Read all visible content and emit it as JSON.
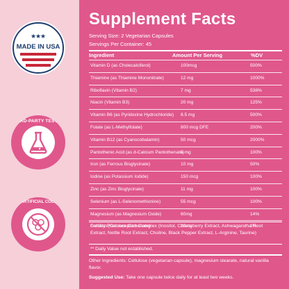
{
  "colors": {
    "background": "#f6cfd9",
    "panel": "#e0578c",
    "badge_navy": "#1f3d6e",
    "badge_red": "#c8283a",
    "badge_pink": "#e0578c"
  },
  "badges": {
    "usa": {
      "text": "MADE IN USA",
      "icon": "star-stripes-icon"
    },
    "third_party": {
      "text": "THIRD-PARTY TESTED",
      "icon": "flask-icon"
    },
    "no_artificial": {
      "text": "NO ARTIFICIAL COLORS",
      "icon": "no-colors-icon"
    }
  },
  "facts": {
    "title": "Supplement Facts",
    "serving_size": "Serving Size: 2 Vegetarian Capsules",
    "servings_per_container": "Servings Per Container: 45",
    "col_ingredient": "Ingredient",
    "col_amount": "Amount Per Serving",
    "col_dv": "%DV",
    "rows": [
      {
        "name": "Vitamin D (as Cholecalciferol)",
        "amount": "100mcg",
        "dv": "500%"
      },
      {
        "name": "Thiamine (as Thiamine Mononitrate)",
        "amount": "12 mg",
        "dv": "1000%"
      },
      {
        "name": "Riboflavin (Vitamin B2)",
        "amount": "7 mg",
        "dv": "538%"
      },
      {
        "name": "Niacin (Vitamin B3)",
        "amount": "20 mg",
        "dv": "125%"
      },
      {
        "name": "Vitamin B6 (as Pyridoxine Hydrochloride)",
        "amount": "8.5 mg",
        "dv": "500%"
      },
      {
        "name": "Folate (as L-Methylfolate)",
        "amount": "800 mcg DFE",
        "dv": "200%"
      },
      {
        "name": "Vitamin B12 (as Cyanocobalamin)",
        "amount": "50 mcg",
        "dv": "2000%"
      },
      {
        "name": "Pantothenic Acid (as d-Calcium Pantothenate)",
        "amount": "5 mg",
        "dv": "100%"
      },
      {
        "name": "Iron (as Ferrous Bisglycinate)",
        "amount": "10 mg",
        "dv": "50%"
      },
      {
        "name": "Iodine (as Potassium Iodide)",
        "amount": "150 mcg",
        "dv": "100%"
      },
      {
        "name": "Zinc (as Zinc Bisglycinate)",
        "amount": "11 mg",
        "dv": "100%"
      },
      {
        "name": "Selenium (as L-Selenomethionine)",
        "amount": "55 mcg",
        "dv": "100%"
      },
      {
        "name": "Magnesium (as Magnesium Oxide)",
        "amount": "60mg",
        "dv": "14%"
      },
      {
        "name": "Calcium (Calcium Carbonate)",
        "amount": "20mg",
        "dv": "2%"
      }
    ],
    "blend": "Fertility Preconception Complex (Inositol, Chasteberry Extract, Ashwagandha Root Extract, Nettle Root Extract, Choline, Black Pepper Extract, L-Arginine, Taurine)",
    "dv_note": "** Daily Value not established.",
    "other_ingredients": "Other Ingredients: Cellulose (vegetarian capsule), magnesium stearate, natural vanilla flavor.",
    "suggested_label": "Suggested Use:",
    "suggested_text": " Take one capsule twice daily for at least two weeks."
  }
}
